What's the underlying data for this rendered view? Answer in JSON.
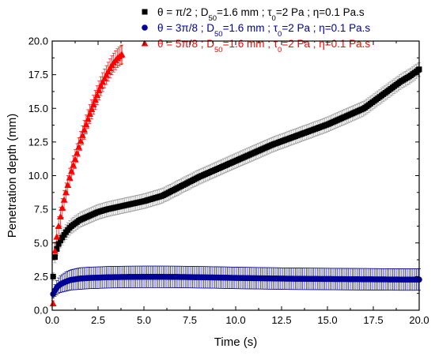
{
  "chart_data": {
    "type": "scatter",
    "xlabel": "Time (s)",
    "ylabel": "Penetration depth (mm)",
    "xlim": [
      0,
      20
    ],
    "ylim": [
      0,
      20
    ],
    "x_ticks": [
      "0.0",
      "2.5",
      "5.0",
      "7.5",
      "10.0",
      "12.5",
      "15.0",
      "17.5",
      "20.0"
    ],
    "y_ticks": [
      "0.0",
      "2.5",
      "5.0",
      "7.5",
      "10.0",
      "12.5",
      "15.0",
      "17.5",
      "20.0"
    ],
    "grid": false,
    "legend_position": "top",
    "series": [
      {
        "name": "θ = π/2   ; D50=1.6 mm ; τ0=2 Pa ; η=0.1 Pa.s",
        "legend_parts": [
          "θ = π/2   ; D",
          "50",
          "=1.6 mm ; τ",
          "0",
          "=2 Pa ; η=0.1 Pa.s"
        ],
        "color": "#000000",
        "marker": "square",
        "error_bar_color": "#9a9a9a",
        "x": [
          0.05,
          0.1,
          0.2,
          0.3,
          0.5,
          0.75,
          1.0,
          1.5,
          2.0,
          2.5,
          3.0,
          4.0,
          5.0,
          6.0,
          7.0,
          8.0,
          9.0,
          10.0,
          11.0,
          12.0,
          13.0,
          14.0,
          15.0,
          16.0,
          17.0,
          17.5,
          18.0,
          18.5,
          19.0,
          19.5,
          19.8,
          20.0
        ],
        "y": [
          2.5,
          3.6,
          4.3,
          4.8,
          5.3,
          5.8,
          6.2,
          6.7,
          7.0,
          7.3,
          7.5,
          7.8,
          8.1,
          8.5,
          9.2,
          9.9,
          10.5,
          11.1,
          11.7,
          12.3,
          12.8,
          13.3,
          13.8,
          14.4,
          15.0,
          15.5,
          16.0,
          16.5,
          17.0,
          17.4,
          17.7,
          17.9
        ],
        "error": [
          0.3,
          0.4,
          0.45,
          0.5,
          0.55,
          0.55,
          0.55,
          0.55,
          0.55,
          0.55,
          0.55,
          0.55,
          0.55,
          0.55,
          0.55,
          0.55,
          0.55,
          0.55,
          0.55,
          0.55,
          0.55,
          0.55,
          0.55,
          0.55,
          0.55,
          0.55,
          0.55,
          0.55,
          0.55,
          0.55,
          0.55,
          0.5
        ]
      },
      {
        "name": "θ = 3π/8 ; D50=1.6 mm ; τ0=2 Pa ; η=0.1 Pa.s",
        "legend_parts": [
          "θ = 3π/8 ; D",
          "50",
          "=1.6 mm ; τ",
          "0",
          "=2 Pa ; η=0.1 Pa.s"
        ],
        "color": "#000099",
        "marker": "circle",
        "error_bar_color": "#000099",
        "x": [
          0.05,
          0.2,
          0.4,
          0.7,
          1.0,
          1.5,
          2.0,
          2.5,
          3.0,
          4.0,
          5.0,
          6.0,
          7.0,
          8.0,
          9.0,
          10.0,
          11.0,
          12.0,
          13.0,
          14.0,
          15.0,
          16.0,
          17.0,
          18.0,
          19.0,
          20.0
        ],
        "y": [
          1.2,
          1.6,
          1.9,
          2.1,
          2.25,
          2.35,
          2.4,
          2.42,
          2.45,
          2.47,
          2.48,
          2.48,
          2.47,
          2.45,
          2.43,
          2.4,
          2.38,
          2.36,
          2.34,
          2.33,
          2.32,
          2.31,
          2.3,
          2.29,
          2.28,
          2.28
        ],
        "error": [
          0.3,
          0.5,
          0.6,
          0.7,
          0.75,
          0.8,
          0.8,
          0.8,
          0.8,
          0.8,
          0.8,
          0.8,
          0.8,
          0.8,
          0.8,
          0.8,
          0.8,
          0.8,
          0.8,
          0.8,
          0.8,
          0.8,
          0.8,
          0.8,
          0.8,
          0.8
        ]
      },
      {
        "name": "θ = 5π/8 ; D50=1.6 mm ; τ0=2 Pa ; η=0.1 Pa.s",
        "legend_parts": [
          "θ = 5π/8 ; D",
          "50",
          "=1.6 mm ; τ",
          "0",
          "=2 Pa ; η=0.1 Pa.s"
        ],
        "color": "#ff0000",
        "marker": "triangle",
        "error_bar_color": "#ff0000",
        "x": [
          0.05,
          0.1,
          0.2,
          0.3,
          0.4,
          0.5,
          0.6,
          0.7,
          0.8,
          0.9,
          1.0,
          1.2,
          1.4,
          1.6,
          1.8,
          2.0,
          2.2,
          2.4,
          2.6,
          2.8,
          3.0,
          3.2,
          3.4,
          3.6,
          3.8
        ],
        "y": [
          0.5,
          3.8,
          5.0,
          5.9,
          6.6,
          7.3,
          7.9,
          8.5,
          9.0,
          9.6,
          10.1,
          11.0,
          11.9,
          12.8,
          13.6,
          14.4,
          15.1,
          15.8,
          16.5,
          17.1,
          17.6,
          18.1,
          18.5,
          18.8,
          19.0
        ],
        "error": [
          0.2,
          0.6,
          0.7,
          0.7,
          0.7,
          0.7,
          0.7,
          0.7,
          0.7,
          0.7,
          0.7,
          0.7,
          0.7,
          0.7,
          0.7,
          0.7,
          0.7,
          0.7,
          0.7,
          0.7,
          0.7,
          0.7,
          0.7,
          0.7,
          0.7
        ]
      }
    ]
  }
}
